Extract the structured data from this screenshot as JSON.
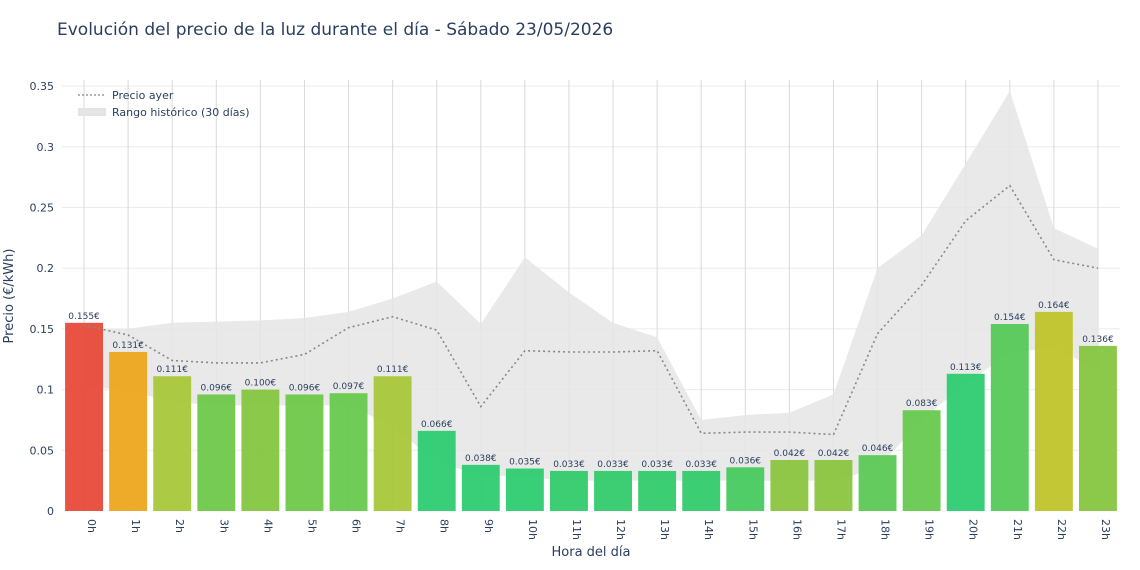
{
  "chart_data": {
    "type": "bar",
    "title": "Evolución del precio de la luz durante el día - Sábado 23/05/2026",
    "xlabel": "Hora del día",
    "ylabel": "Precio (€/kWh)",
    "ylim": [
      0,
      0.355
    ],
    "yticks": [
      0,
      0.05,
      0.1,
      0.15,
      0.2,
      0.25,
      0.3,
      0.35
    ],
    "ytick_labels": [
      "0",
      "0.05",
      "0.1",
      "0.15",
      "0.2",
      "0.25",
      "0.3",
      "0.35"
    ],
    "categories": [
      "0h",
      "1h",
      "2h",
      "3h",
      "4h",
      "5h",
      "6h",
      "7h",
      "8h",
      "9h",
      "10h",
      "11h",
      "12h",
      "13h",
      "14h",
      "15h",
      "16h",
      "17h",
      "18h",
      "19h",
      "20h",
      "21h",
      "22h",
      "23h"
    ],
    "values": [
      0.155,
      0.131,
      0.111,
      0.096,
      0.1,
      0.096,
      0.097,
      0.111,
      0.066,
      0.038,
      0.035,
      0.033,
      0.033,
      0.033,
      0.033,
      0.036,
      0.042,
      0.042,
      0.046,
      0.083,
      0.113,
      0.154,
      0.164,
      0.136
    ],
    "value_labels": [
      "0.155€",
      "0.131€",
      "0.111€",
      "0.096€",
      "0.100€",
      "0.096€",
      "0.097€",
      "0.111€",
      "0.066€",
      "0.038€",
      "0.035€",
      "0.033€",
      "0.033€",
      "0.033€",
      "0.033€",
      "0.036€",
      "0.042€",
      "0.042€",
      "0.046€",
      "0.083€",
      "0.113€",
      "0.154€",
      "0.164€",
      "0.136€"
    ],
    "bar_colors": [
      "#e84a3a",
      "#eda61e",
      "#a8c73a",
      "#6fc84a",
      "#85c640",
      "#6fc84a",
      "#66c94e",
      "#a8c73a",
      "#2ecc71",
      "#2ecc71",
      "#2ecc71",
      "#33cb6c",
      "#33cb6c",
      "#33cb6c",
      "#33cb6c",
      "#47ca5f",
      "#8bc540",
      "#8bc540",
      "#5cc955",
      "#67c94f",
      "#2ecc71",
      "#55c957",
      "#c0c42a",
      "#86c640"
    ],
    "series": [
      {
        "name": "Precio ayer",
        "style": "dotted",
        "color": "#888888",
        "values": [
          0.153,
          0.145,
          0.124,
          0.122,
          0.122,
          0.129,
          0.151,
          0.16,
          0.149,
          0.086,
          0.132,
          0.131,
          0.131,
          0.132,
          0.064,
          0.065,
          0.065,
          0.063,
          0.146,
          0.186,
          0.239,
          0.268,
          0.207,
          0.2
        ]
      },
      {
        "name": "Rango histórico (30 días)",
        "type": "area-band",
        "color": "#e5e5e5",
        "upper": [
          0.15,
          0.15,
          0.155,
          0.156,
          0.157,
          0.159,
          0.164,
          0.175,
          0.189,
          0.154,
          0.209,
          0.18,
          0.155,
          0.143,
          0.075,
          0.079,
          0.081,
          0.096,
          0.2,
          0.227,
          0.286,
          0.346,
          0.233,
          0.216
        ],
        "lower": [
          0.103,
          0.099,
          0.09,
          0.087,
          0.087,
          0.087,
          0.087,
          0.07,
          0.04,
          0.03,
          0.028,
          0.025,
          0.025,
          0.025,
          0.025,
          0.025,
          0.025,
          0.025,
          0.035,
          0.075,
          0.105,
          0.13,
          0.135,
          0.116
        ]
      }
    ],
    "grid": true,
    "legend_position": "top-left"
  }
}
